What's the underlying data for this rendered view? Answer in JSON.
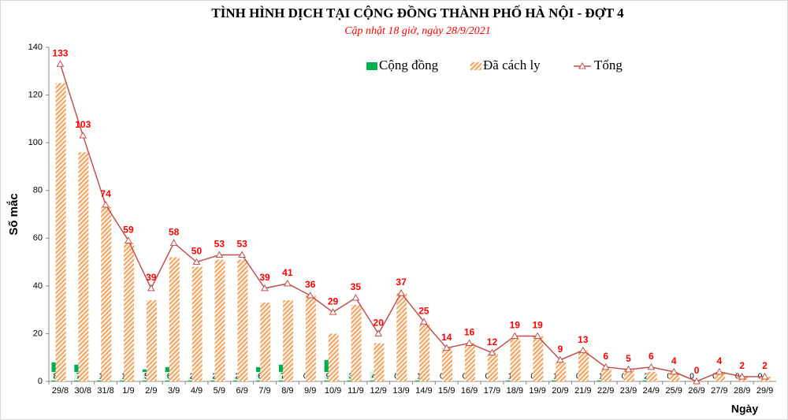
{
  "chart_data": {
    "type": "bar",
    "title": "TÌNH HÌNH DỊCH TẠI CỘNG ĐỒNG THÀNH PHỐ HÀ NỘI - ĐỢT 4",
    "subtitle": "Cập nhật 18 giờ, ngày 28/9/2021",
    "y_label": "Số mắc",
    "x_label": "Ngày",
    "categories": [
      "29/8",
      "30/8",
      "31/8",
      "1/9",
      "2/9",
      "3/9",
      "4/9",
      "5/9",
      "6/9",
      "7/9",
      "8/9",
      "9/9",
      "10/9",
      "11/9",
      "12/9",
      "13/9",
      "14/9",
      "15/9",
      "16/9",
      "17/9",
      "18/9",
      "19/9",
      "20/9",
      "21/9",
      "22/9",
      "23/9",
      "24/9",
      "25/9",
      "26/9",
      "27/9",
      "28/9",
      "29/9"
    ],
    "series": [
      {
        "name": "Cộng đồng",
        "type": "bar",
        "color": "#00b050",
        "values": [
          8,
          7,
          1,
          1,
          5,
          6,
          2,
          2,
          2,
          6,
          7,
          0,
          9,
          3,
          4,
          0,
          1,
          0,
          0,
          0,
          1,
          0,
          1,
          0,
          1,
          0,
          2,
          0,
          0,
          0,
          0,
          0
        ]
      },
      {
        "name": "Đã cách ly",
        "type": "bar",
        "color": "#f4a460",
        "values": [
          125,
          96,
          73,
          58,
          34,
          52,
          48,
          51,
          51,
          33,
          34,
          36,
          20,
          32,
          16,
          37,
          24,
          14,
          16,
          12,
          18,
          19,
          8,
          13,
          5,
          5,
          4,
          4,
          0,
          4,
          2,
          2
        ]
      },
      {
        "name": "Tổng",
        "type": "line",
        "color": "#c0504d",
        "label_color": "#ff0000",
        "values": [
          133,
          103,
          74,
          59,
          39,
          58,
          50,
          53,
          53,
          39,
          41,
          36,
          29,
          35,
          20,
          37,
          25,
          14,
          16,
          12,
          19,
          19,
          9,
          13,
          6,
          5,
          6,
          4,
          0,
          4,
          2,
          2
        ]
      }
    ],
    "ylim": [
      0,
      140
    ],
    "yticks": [
      0,
      20,
      40,
      60,
      80,
      100,
      120,
      140
    ]
  }
}
